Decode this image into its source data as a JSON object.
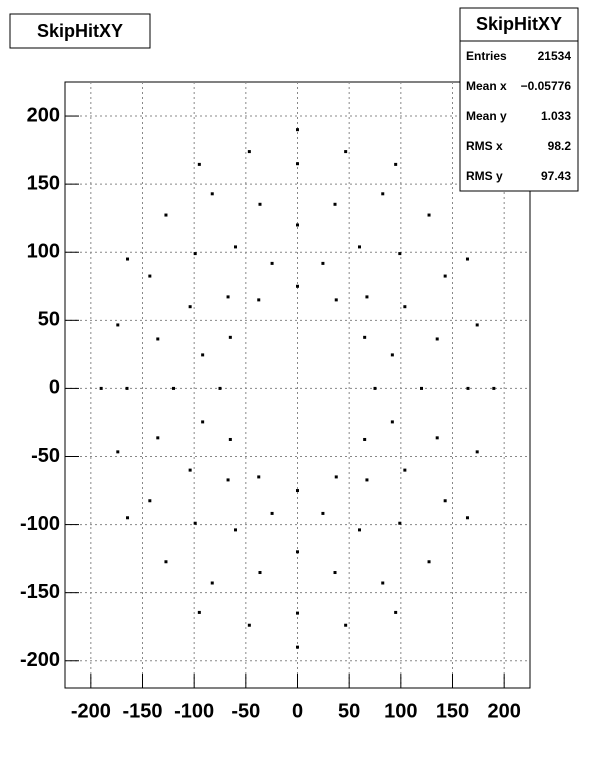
{
  "chart_data": {
    "type": "scatter",
    "title": "SkipHitXY",
    "color": "#000000",
    "grid": true,
    "x": [
      75,
      65,
      37.5,
      0,
      -37.5,
      -65,
      -75,
      -65,
      -37.5,
      0,
      37.5,
      65,
      120,
      103.9,
      60,
      0,
      -60,
      -103.9,
      -120,
      -103.9,
      -60,
      0,
      60,
      103.9,
      165,
      142.9,
      82.5,
      0,
      -82.5,
      -142.9,
      -165,
      -142.9,
      -82.5,
      0,
      82.5,
      142.9,
      190,
      164.5,
      95,
      0,
      -95,
      -164.5,
      -190,
      -164.5,
      -95,
      0,
      95,
      164.5,
      91.8,
      67.2,
      24.6,
      -24.6,
      -67.2,
      -91.8,
      -91.8,
      -67.2,
      -24.6,
      24.6,
      67.2,
      91.8,
      135.2,
      99,
      36.3,
      -36.3,
      -99,
      -135.2,
      -135.2,
      -99,
      -36.3,
      36.3,
      99,
      135.2,
      173.9,
      127.3,
      46.6,
      -46.6,
      -127.3,
      -173.9,
      -173.9,
      -127.3,
      -46.6,
      46.6,
      127.3,
      173.9
    ],
    "y": [
      0,
      37.5,
      65,
      75,
      65,
      37.5,
      0,
      -37.5,
      -65,
      -75,
      -65,
      -37.5,
      0,
      60,
      103.9,
      120,
      103.9,
      60,
      0,
      -60,
      -103.9,
      -120,
      -103.9,
      -60,
      0,
      82.5,
      142.9,
      165,
      142.9,
      82.5,
      0,
      -82.5,
      -142.9,
      -165,
      -142.9,
      -82.5,
      0,
      95,
      164.5,
      190,
      164.5,
      95,
      0,
      -95,
      -164.5,
      -190,
      -164.5,
      -95,
      24.6,
      67.2,
      91.8,
      91.8,
      67.2,
      24.6,
      -24.6,
      -67.2,
      -91.8,
      -91.8,
      -67.2,
      -24.6,
      36.3,
      99,
      135.2,
      135.2,
      99,
      36.3,
      -36.3,
      -99,
      -135.2,
      -135.2,
      -99,
      -36.3,
      46.6,
      127.3,
      173.9,
      173.9,
      127.3,
      46.6,
      -46.6,
      -127.3,
      -173.9,
      -173.9,
      -127.3,
      -46.6
    ],
    "xlim": [
      -225,
      225
    ],
    "ylim": [
      -220,
      225
    ],
    "xticks": [
      -200,
      -150,
      -100,
      -50,
      0,
      50,
      100,
      150,
      200
    ],
    "yticks": [
      -200,
      -150,
      -100,
      -50,
      0,
      50,
      100,
      150,
      200
    ]
  },
  "stats": {
    "title": "SkipHitXY",
    "rows": [
      [
        "Entries",
        "21534"
      ],
      [
        "Mean x",
        "−0.05776"
      ],
      [
        "Mean y",
        "1.033"
      ],
      [
        "RMS x",
        "98.2"
      ],
      [
        "RMS y",
        "97.43"
      ]
    ]
  }
}
